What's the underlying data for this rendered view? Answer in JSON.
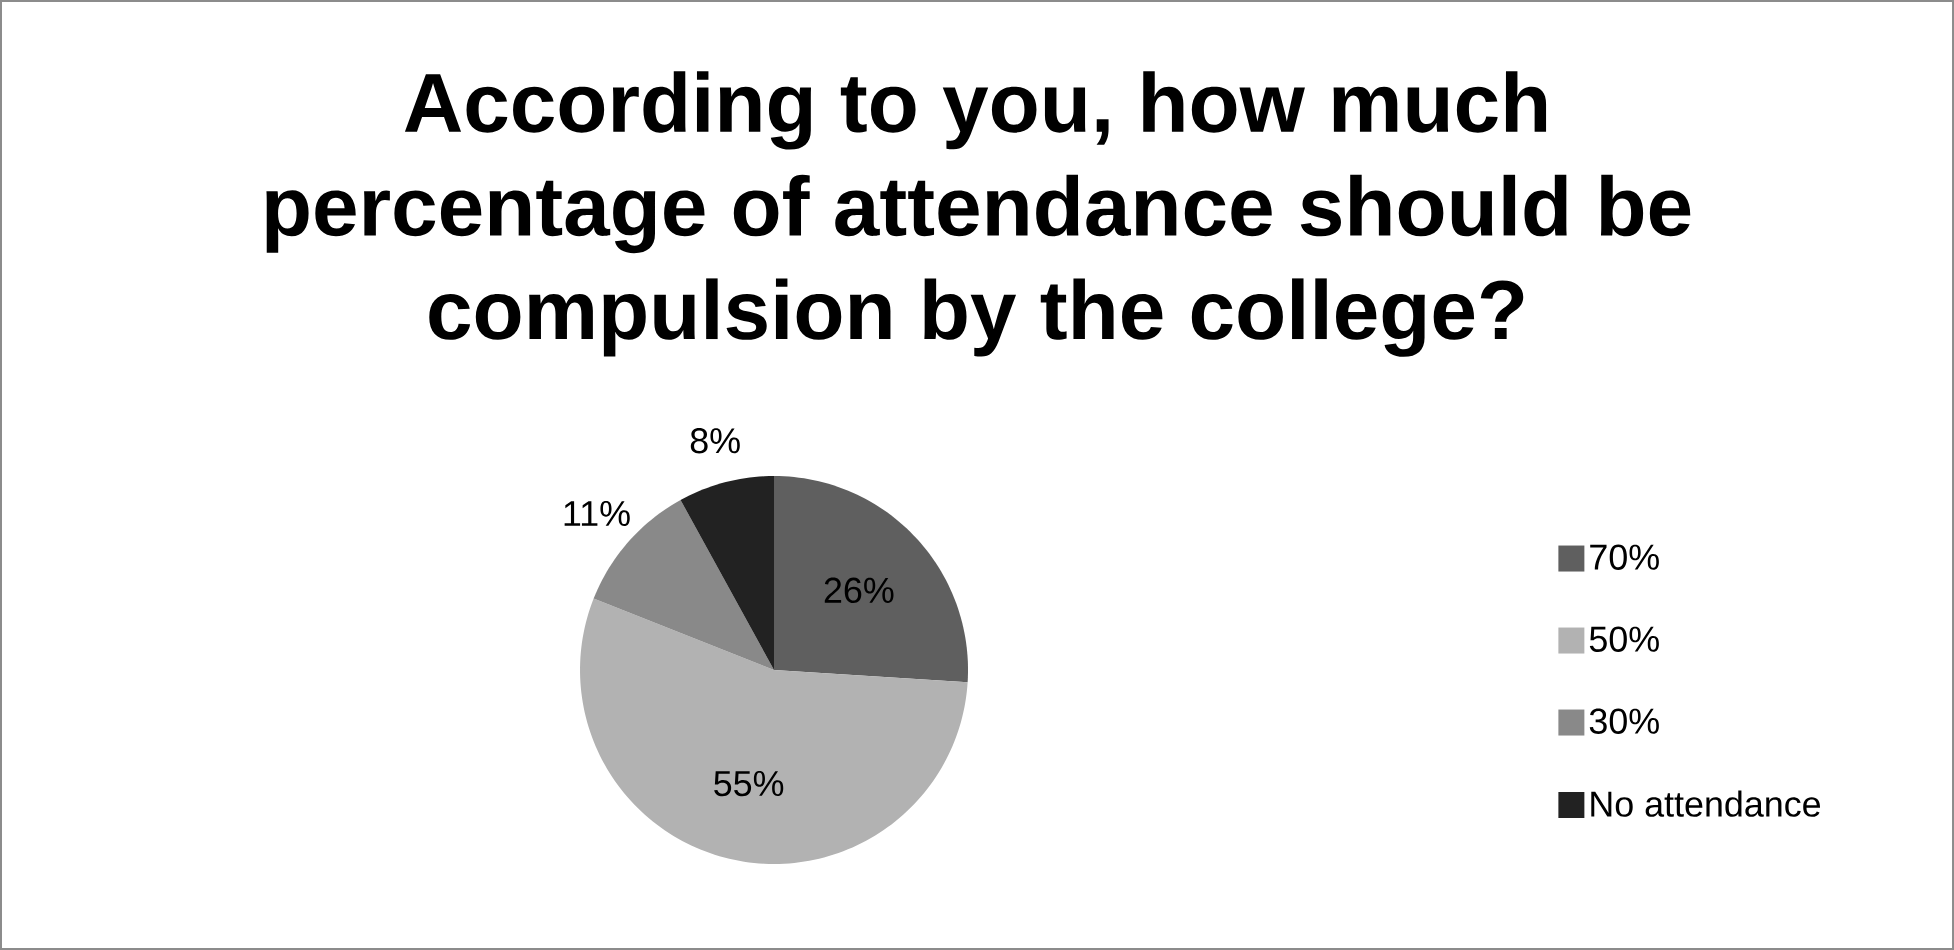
{
  "chart_data": {
    "type": "pie",
    "title": "According to you, how much percentage of attendance should be compulsion by the college?",
    "categories": [
      "70%",
      "50%",
      "30%",
      "No attendance"
    ],
    "values": [
      26,
      55,
      11,
      8
    ],
    "colors": [
      "#5f5f5f",
      "#b2b2b2",
      "#898989",
      "#222222"
    ],
    "value_labels": [
      "26%",
      "55%",
      "11%",
      "8%"
    ],
    "legend": "right"
  }
}
